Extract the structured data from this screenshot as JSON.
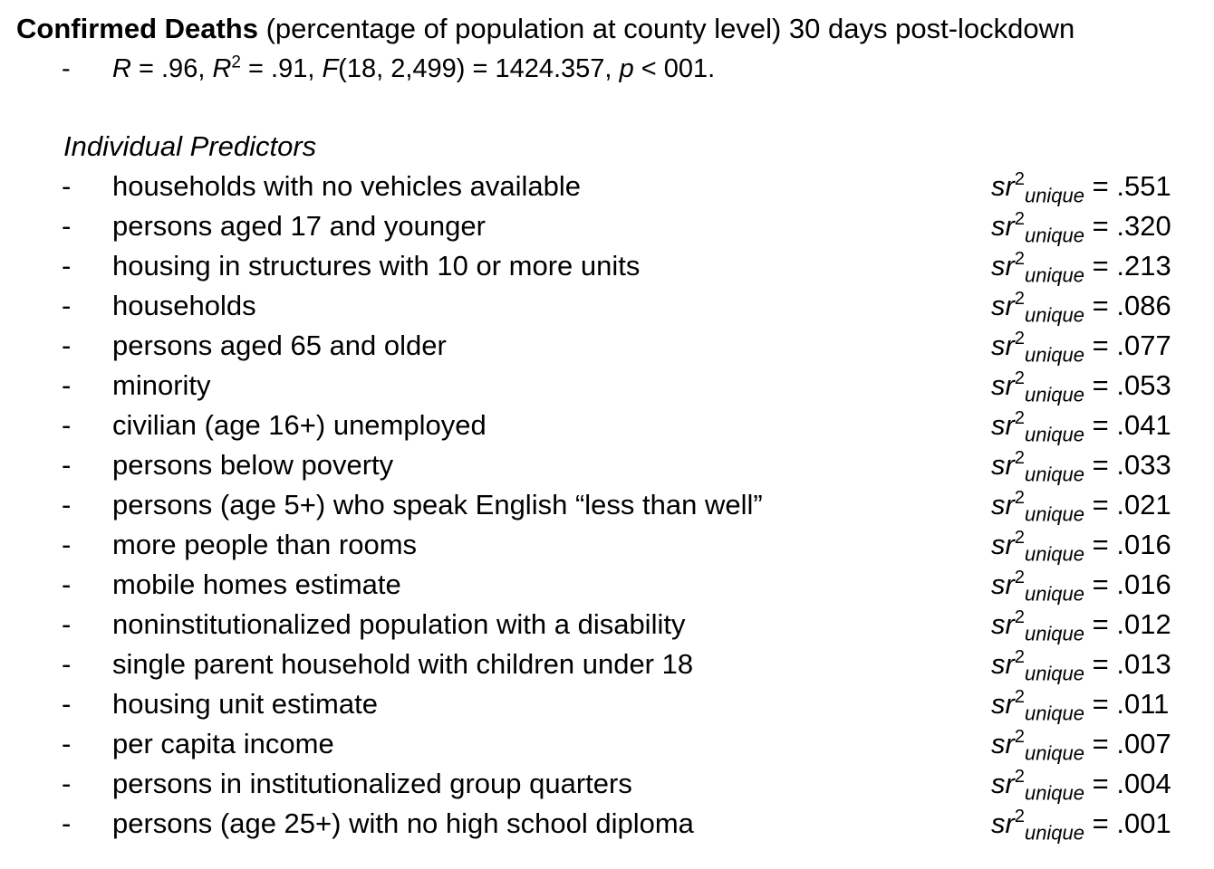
{
  "header": {
    "title_bold": "Confirmed Deaths",
    "title_rest": " (percentage of population at county level) 30 days post-lockdown"
  },
  "stats": {
    "dash": "-",
    "r_symbol": "R",
    "r_value": " = .96, ",
    "r2_symbol": "R",
    "r2_exponent": "2",
    "r2_value": " = .91, ",
    "f_symbol": "F",
    "f_value": "(18, 2,499) = 1424.357, ",
    "p_symbol": "p",
    "p_value": " < 001."
  },
  "section": {
    "heading": "Individual Predictors"
  },
  "measure": {
    "symbol": "sr",
    "exponent": "2",
    "subscript": "unique",
    "equals": " = "
  },
  "predictors": [
    {
      "dash": "-",
      "name": "households with no vehicles available",
      "value": ".551"
    },
    {
      "dash": "-",
      "name": "persons aged 17 and younger",
      "value": ".320"
    },
    {
      "dash": "-",
      "name": "housing in structures with 10 or more units",
      "value": ".213"
    },
    {
      "dash": "-",
      "name": "households",
      "value": ".086"
    },
    {
      "dash": "-",
      "name": "persons aged 65 and older",
      "value": ".077"
    },
    {
      "dash": "-",
      "name": "minority",
      "value": ".053"
    },
    {
      "dash": "-",
      "name": "civilian (age 16+) unemployed",
      "value": ".041"
    },
    {
      "dash": "-",
      "name": "persons below poverty",
      "value": ".033"
    },
    {
      "dash": "-",
      "name": "persons (age 5+) who speak English “less than well”",
      "value": ".021"
    },
    {
      "dash": "-",
      "name": "more people than rooms",
      "value": ".016"
    },
    {
      "dash": "-",
      "name": "mobile homes estimate",
      "value": ".016"
    },
    {
      "dash": "-",
      "name": "noninstitutionalized population with a disability",
      "value": ".012"
    },
    {
      "dash": "-",
      "name": "single parent household with children under 18",
      "value": ".013"
    },
    {
      "dash": "-",
      "name": "housing unit estimate",
      "value": ".011"
    },
    {
      "dash": "-",
      "name": "per capita income",
      "value": ".007"
    },
    {
      "dash": "-",
      "name": "persons in institutionalized group quarters",
      "value": ".004"
    },
    {
      "dash": "-",
      "name": "persons (age 25+) with no high school diploma",
      "value": ".001"
    }
  ]
}
